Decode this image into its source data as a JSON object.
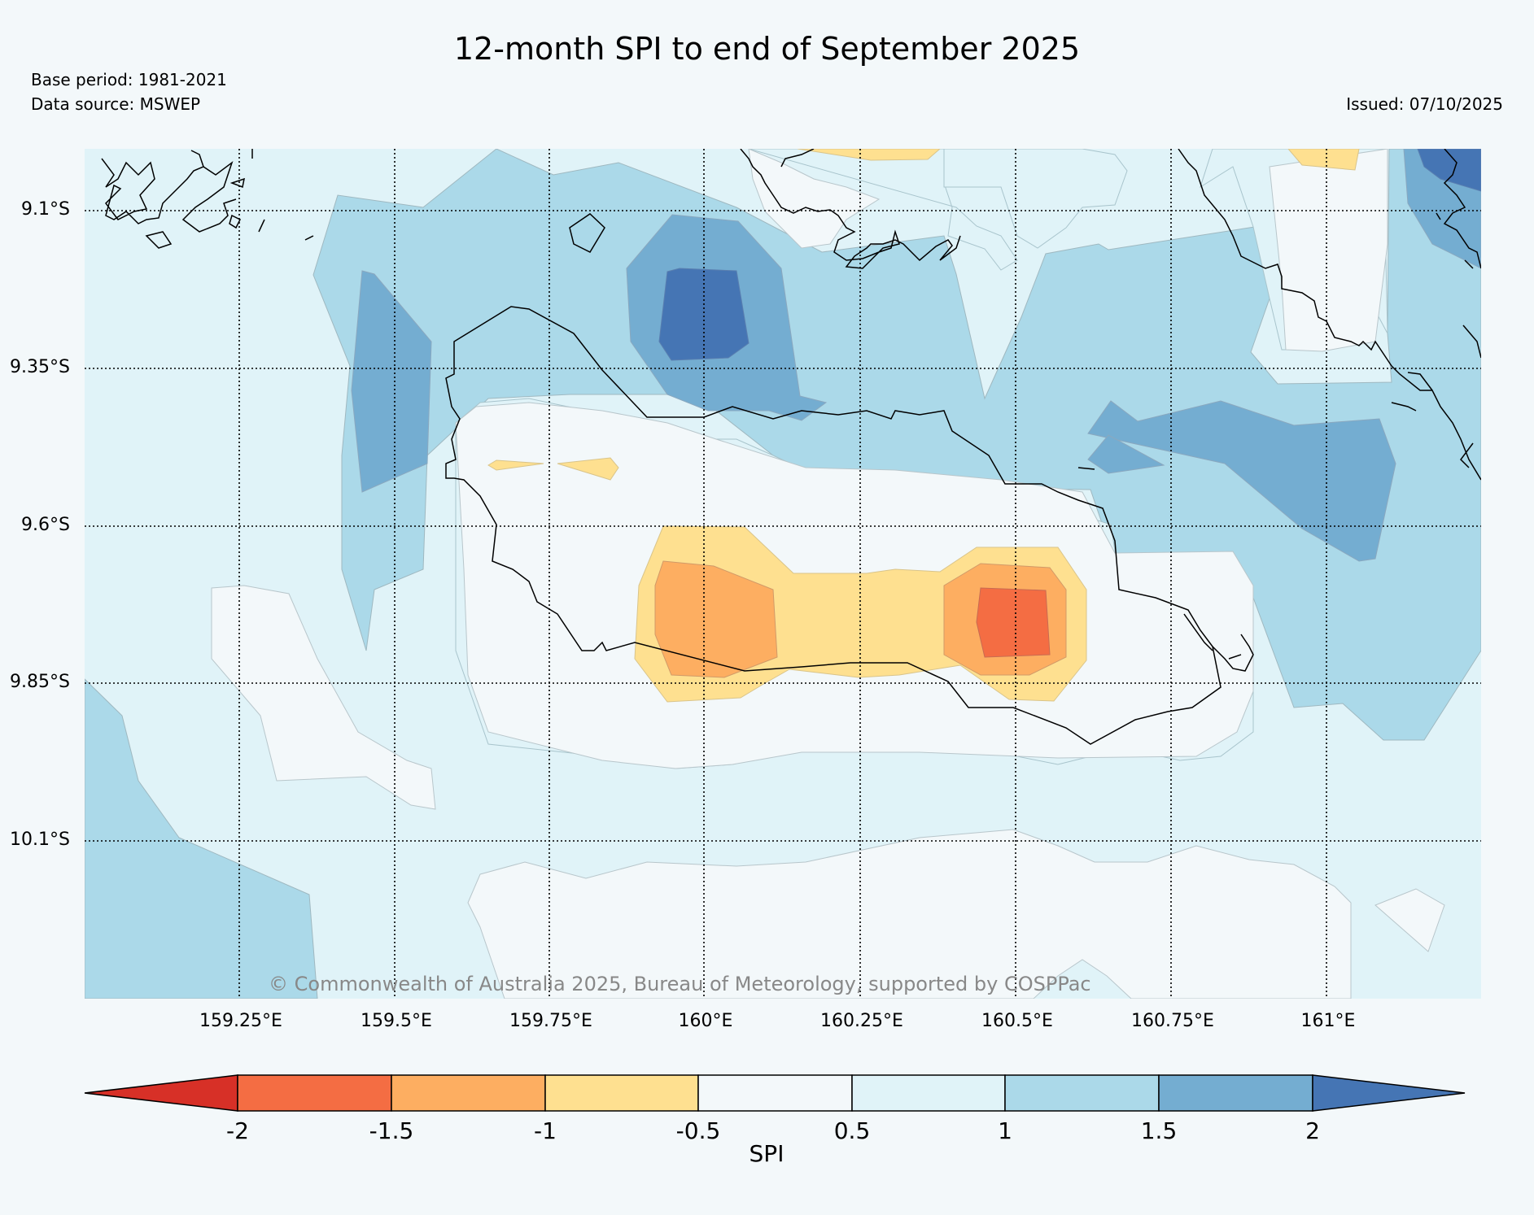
{
  "header": {
    "title": "12-month SPI to end of September 2025",
    "base_period": "Base period: 1981-2021",
    "data_source": "Data source: MSWEP",
    "issued": "Issued: 07/10/2025"
  },
  "map": {
    "lat_labels": [
      "9.1°S",
      "9.35°S",
      "9.6°S",
      "9.85°S",
      "10.1°S"
    ],
    "lon_labels": [
      "159.25°E",
      "159.5°E",
      "159.75°E",
      "160°E",
      "160.25°E",
      "160.5°E",
      "160.75°E",
      "161°E"
    ],
    "copyright": "© Commonwealth of Australia 2025, Bureau of Meteorology, supported by COSPPac"
  },
  "colorbar": {
    "title": "SPI",
    "tick_labels": [
      "-2",
      "-1.5",
      "-1",
      "-0.5",
      "0.5",
      "1",
      "1.5",
      "2"
    ],
    "colors": [
      "#d73027",
      "#f46d43",
      "#fdae61",
      "#fee090",
      "#f3f8fa",
      "#e0f3f8",
      "#abd9e9",
      "#74add1",
      "#4575b4"
    ]
  }
}
